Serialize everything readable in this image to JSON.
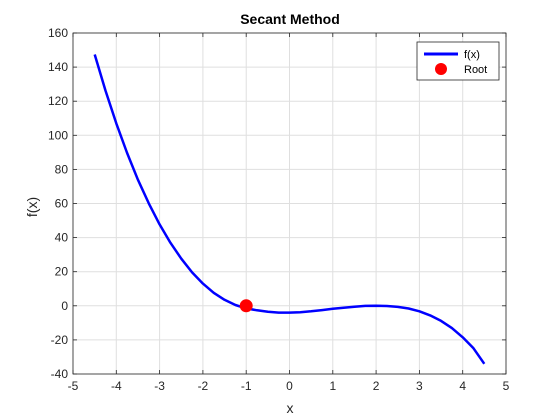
{
  "chart_data": {
    "type": "line",
    "title": "Secant Method",
    "xlabel": "x",
    "ylabel": "f(x)",
    "xlim": [
      -5,
      5
    ],
    "ylim": [
      -40,
      160
    ],
    "xticks": [
      -5,
      -4,
      -3,
      -2,
      -1,
      0,
      1,
      2,
      3,
      4,
      5
    ],
    "yticks": [
      -40,
      -20,
      0,
      20,
      40,
      60,
      80,
      100,
      120,
      140,
      160
    ],
    "grid": true,
    "legend_position": "top-right",
    "series": [
      {
        "name": "f(x)",
        "type": "line",
        "color": "#0000ff",
        "x": [
          -4.5,
          -4.25,
          -4.0,
          -3.75,
          -3.5,
          -3.25,
          -3.0,
          -2.75,
          -2.5,
          -2.25,
          -2.0,
          -1.75,
          -1.5,
          -1.25,
          -1.0,
          -0.75,
          -0.5,
          -0.25,
          0.0,
          0.25,
          0.5,
          0.75,
          1.0,
          1.25,
          1.5,
          1.75,
          2.0,
          2.25,
          2.5,
          2.75,
          3.0,
          3.25,
          3.5,
          3.75,
          4.0,
          4.25,
          4.5
        ],
        "y": [
          147.38,
          126.23,
          107.0,
          89.61,
          73.98,
          60.05,
          47.75,
          37.0,
          27.63,
          19.61,
          13.0,
          7.64,
          3.5,
          0.45,
          -1.5,
          -2.61,
          -3.5,
          -3.98,
          -4.0,
          -3.73,
          -3.25,
          -2.55,
          -1.75,
          -1.09,
          -0.5,
          -0.08,
          0.0,
          -0.14,
          -0.63,
          -1.6,
          -3.25,
          -5.61,
          -8.88,
          -13.08,
          -18.5,
          -24.94,
          -34.0
        ]
      },
      {
        "name": "Root",
        "type": "scatter",
        "color": "#ff0000",
        "x": [
          -1.0
        ],
        "y": [
          0.0
        ]
      }
    ]
  }
}
